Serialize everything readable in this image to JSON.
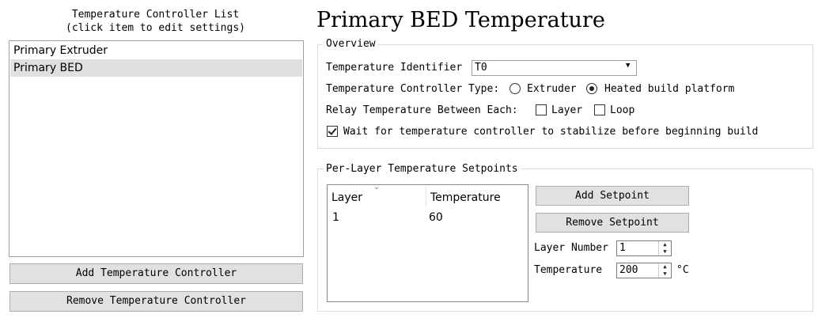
{
  "controller_list": {
    "title_line1": "Temperature Controller List",
    "title_line2": "(click item to edit settings)",
    "items": [
      {
        "label": "Primary Extruder",
        "selected": false
      },
      {
        "label": "Primary BED",
        "selected": true
      }
    ],
    "add_button": "Add Temperature Controller",
    "remove_button": "Remove Temperature Controller"
  },
  "editor": {
    "title": "Primary BED Temperature",
    "overview": {
      "legend": "Overview",
      "identifier_label": "Temperature Identifier",
      "identifier_value": "T0",
      "type_label": "Temperature Controller Type:",
      "type_options": [
        {
          "label": "Extruder",
          "checked": false
        },
        {
          "label": "Heated build platform",
          "checked": true
        }
      ],
      "relay_label": "Relay Temperature Between Each:",
      "relay_options": [
        {
          "label": "Layer",
          "checked": false
        },
        {
          "label": "Loop",
          "checked": false
        }
      ],
      "wait_label": "Wait for temperature controller to stabilize before beginning build",
      "wait_checked": true
    },
    "setpoints": {
      "legend": "Per-Layer Temperature Setpoints",
      "columns": [
        "Layer",
        "Temperature"
      ],
      "rows": [
        {
          "layer": "1",
          "temperature": "60"
        }
      ],
      "add_button": "Add Setpoint",
      "remove_button": "Remove Setpoint",
      "layer_number_label": "Layer Number",
      "layer_number_value": "1",
      "temperature_label": "Temperature",
      "temperature_value": "200",
      "unit": "°C"
    }
  }
}
